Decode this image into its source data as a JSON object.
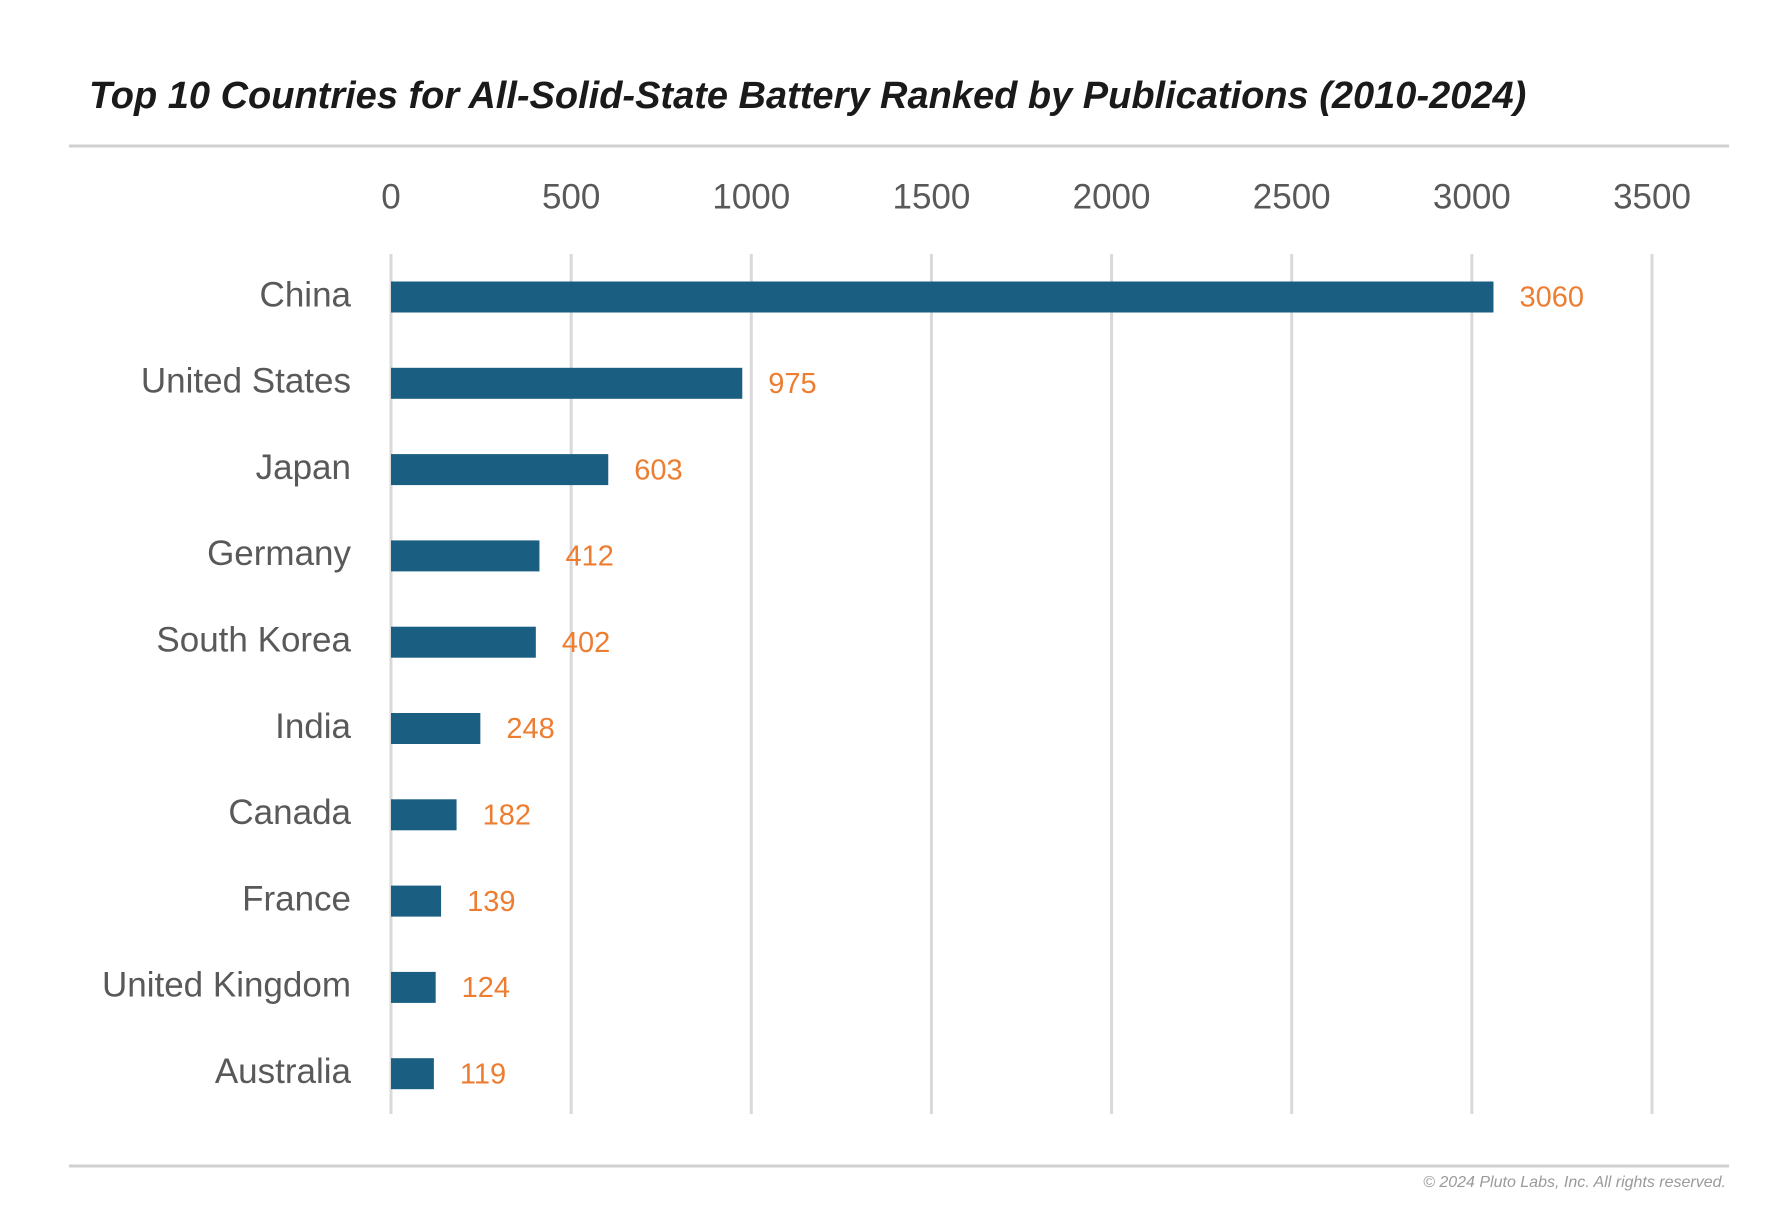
{
  "chart_data": {
    "type": "bar",
    "orientation": "horizontal",
    "title": "Top 10 Countries for All-Solid-State Battery Ranked by Publications (2010-2024)",
    "categories": [
      "China",
      "United States",
      "Japan",
      "Germany",
      "South Korea",
      "India",
      "Canada",
      "France",
      "United Kingdom",
      "Australia"
    ],
    "values": [
      3060,
      975,
      603,
      412,
      402,
      248,
      182,
      139,
      124,
      119
    ],
    "color": "#1a5f82",
    "label_color": "#ed7d31",
    "xlim": [
      0,
      3500
    ],
    "xticks": [
      0,
      500,
      1000,
      1500,
      2000,
      2500,
      3000,
      3500
    ],
    "grid": true,
    "footnote": "© 2024 Pluto Labs, Inc. All rights reserved."
  }
}
